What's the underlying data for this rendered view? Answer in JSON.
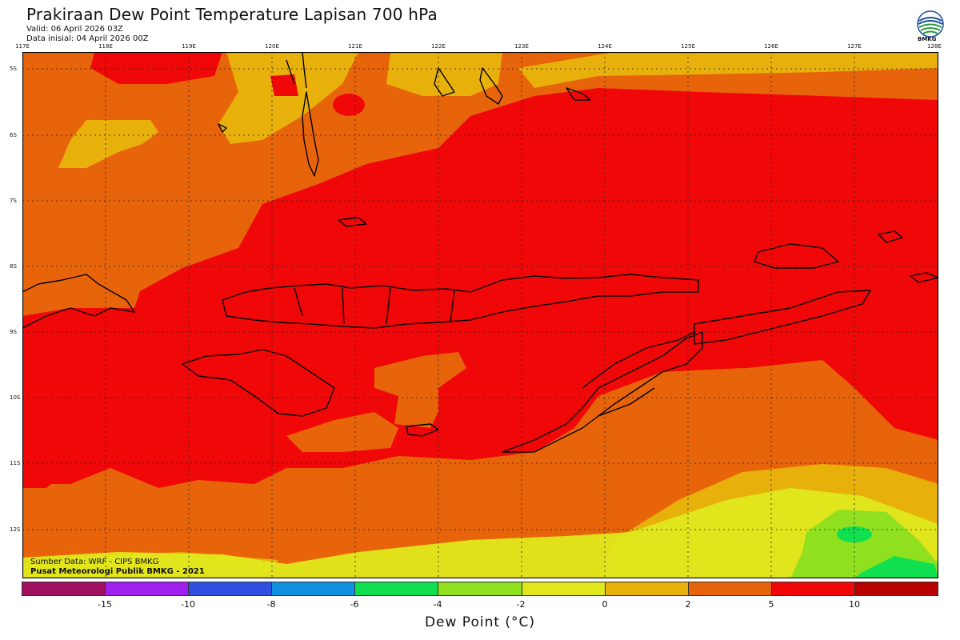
{
  "title": "Prakiraan Dew Point Temperature Lapisan 700 hPa",
  "valid": "Valid: 06 April 2026 03Z",
  "init": "Data inisial: 04 April 2026 00Z",
  "logo_text": "BMKG",
  "source_line1": "Sumber Data: WRF - CIPS BMKG",
  "source_line2": "Pusat Meteorologi Publik BMKG - 2021",
  "lon_labels": [
    "117E",
    "118E",
    "119E",
    "120E",
    "121E",
    "122E",
    "123E",
    "124E",
    "125E",
    "126E",
    "127E",
    "128E"
  ],
  "lat_labels": [
    "5S",
    "6S",
    "7S",
    "8S",
    "9S",
    "10S",
    "11S",
    "12S"
  ],
  "colorbar": {
    "label": "Dew Point (°C)",
    "ticks": [
      "-15",
      "-10",
      "-8",
      "-6",
      "-4",
      "-2",
      "0",
      "2",
      "5",
      "10"
    ],
    "colors": [
      "#a0105e",
      "#a020f0",
      "#2f4fe0",
      "#1090e0",
      "#10e050",
      "#90e020",
      "#e0e81c",
      "#e8b00a",
      "#e8640a",
      "#f00808",
      "#b80000"
    ]
  },
  "palette": {
    "deep_red": "#f00808",
    "orange": "#e8640a",
    "amber": "#e8b00a",
    "yellow": "#e0e81c",
    "yellow_green": "#c8e81c",
    "green": "#90e020",
    "bright_green": "#10e050",
    "coast": "#000000",
    "grid": "#222222"
  }
}
